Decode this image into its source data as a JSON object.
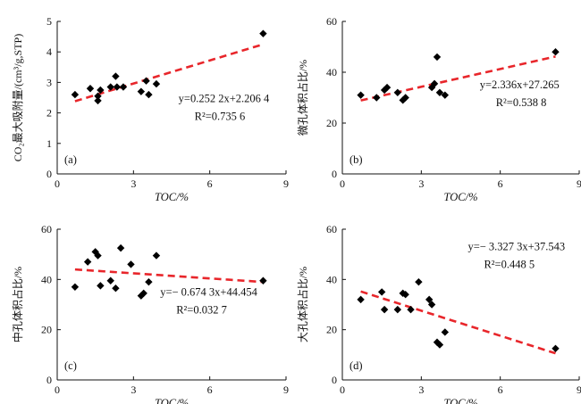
{
  "chart_data": [
    {
      "type": "scatter",
      "panel_label": "(a)",
      "xlabel": "TOC/%",
      "ylabel": "CO₂最大吸附量/(cm³/g,STP)",
      "xlim": [
        0,
        9
      ],
      "ylim": [
        0,
        5
      ],
      "x_ticks": [
        "0",
        "3",
        "6",
        "9"
      ],
      "y_ticks": [
        "0",
        "1",
        "2",
        "3",
        "4",
        "5"
      ],
      "equation": "y=0.252 2x+2.206 4",
      "r2": "R²=0.735 6",
      "trendline": {
        "slope": 0.2522,
        "intercept": 2.2064,
        "x_range": [
          0.7,
          8.1
        ]
      },
      "grid": false,
      "points": [
        {
          "x": 0.7,
          "y": 2.6
        },
        {
          "x": 1.3,
          "y": 2.8
        },
        {
          "x": 1.6,
          "y": 2.4
        },
        {
          "x": 1.6,
          "y": 2.55
        },
        {
          "x": 1.7,
          "y": 2.75
        },
        {
          "x": 2.1,
          "y": 2.85
        },
        {
          "x": 2.3,
          "y": 3.2
        },
        {
          "x": 2.35,
          "y": 2.85
        },
        {
          "x": 2.6,
          "y": 2.85
        },
        {
          "x": 3.3,
          "y": 2.7
        },
        {
          "x": 3.5,
          "y": 3.05
        },
        {
          "x": 3.6,
          "y": 2.6
        },
        {
          "x": 3.9,
          "y": 2.95
        },
        {
          "x": 8.1,
          "y": 4.6
        }
      ]
    },
    {
      "type": "scatter",
      "panel_label": "(b)",
      "xlabel": "TOC/%",
      "ylabel": "微孔体积占比/%",
      "xlim": [
        0,
        9
      ],
      "ylim": [
        0,
        60
      ],
      "x_ticks": [
        "0",
        "3",
        "6",
        "9"
      ],
      "y_ticks": [
        "0",
        "20",
        "40",
        "60"
      ],
      "equation": "y=2.336x+27.265",
      "r2": "R²=0.538 8",
      "trendline": {
        "slope": 2.336,
        "intercept": 27.265,
        "x_range": [
          0.7,
          8.1
        ]
      },
      "grid": false,
      "points": [
        {
          "x": 0.7,
          "y": 31
        },
        {
          "x": 1.3,
          "y": 30
        },
        {
          "x": 1.6,
          "y": 33
        },
        {
          "x": 1.7,
          "y": 34
        },
        {
          "x": 2.1,
          "y": 32
        },
        {
          "x": 2.3,
          "y": 29
        },
        {
          "x": 2.4,
          "y": 30
        },
        {
          "x": 3.4,
          "y": 34
        },
        {
          "x": 3.5,
          "y": 35.5
        },
        {
          "x": 3.6,
          "y": 46
        },
        {
          "x": 3.7,
          "y": 32
        },
        {
          "x": 3.9,
          "y": 31
        },
        {
          "x": 8.1,
          "y": 48
        }
      ]
    },
    {
      "type": "scatter",
      "panel_label": "(c)",
      "xlabel": "TOC/%",
      "ylabel": "中孔体积占比/%",
      "xlim": [
        0,
        9
      ],
      "ylim": [
        0,
        60
      ],
      "x_ticks": [
        "0",
        "3",
        "6",
        "9"
      ],
      "y_ticks": [
        "0",
        "20",
        "40",
        "60"
      ],
      "equation": "y=− 0.674 3x+44.454",
      "r2": "R²=0.032 7",
      "trendline": {
        "slope": -0.6743,
        "intercept": 44.454,
        "x_range": [
          0.7,
          8.1
        ]
      },
      "grid": false,
      "points": [
        {
          "x": 0.7,
          "y": 37
        },
        {
          "x": 1.2,
          "y": 47
        },
        {
          "x": 1.5,
          "y": 51
        },
        {
          "x": 1.6,
          "y": 49.5
        },
        {
          "x": 1.7,
          "y": 37.5
        },
        {
          "x": 2.1,
          "y": 39.5
        },
        {
          "x": 2.3,
          "y": 36.5
        },
        {
          "x": 2.5,
          "y": 52.5
        },
        {
          "x": 2.9,
          "y": 46
        },
        {
          "x": 3.3,
          "y": 33.5
        },
        {
          "x": 3.4,
          "y": 34.5
        },
        {
          "x": 3.6,
          "y": 39
        },
        {
          "x": 3.9,
          "y": 49.5
        },
        {
          "x": 8.1,
          "y": 39.5
        }
      ]
    },
    {
      "type": "scatter",
      "panel_label": "(d)",
      "xlabel": "TOC/%",
      "ylabel": "大孔体积占比/%",
      "xlim": [
        0,
        9
      ],
      "ylim": [
        0,
        60
      ],
      "x_ticks": [
        "0",
        "3",
        "6",
        "9"
      ],
      "y_ticks": [
        "0",
        "20",
        "40",
        "60"
      ],
      "equation": "y=− 3.327 3x+37.543",
      "r2": "R²=0.448 5",
      "trendline": {
        "slope": -3.3273,
        "intercept": 37.543,
        "x_range": [
          0.7,
          8.1
        ]
      },
      "grid": false,
      "points": [
        {
          "x": 0.7,
          "y": 32
        },
        {
          "x": 1.5,
          "y": 35
        },
        {
          "x": 1.6,
          "y": 28
        },
        {
          "x": 2.1,
          "y": 28
        },
        {
          "x": 2.3,
          "y": 34.5
        },
        {
          "x": 2.4,
          "y": 34
        },
        {
          "x": 2.6,
          "y": 28
        },
        {
          "x": 2.9,
          "y": 39
        },
        {
          "x": 3.3,
          "y": 32
        },
        {
          "x": 3.4,
          "y": 30
        },
        {
          "x": 3.6,
          "y": 15
        },
        {
          "x": 3.7,
          "y": 14
        },
        {
          "x": 3.9,
          "y": 19
        },
        {
          "x": 8.1,
          "y": 12.5
        }
      ]
    }
  ],
  "style": {
    "marker_color": "#000000",
    "trendline_color": "#e8262b",
    "axis_color": "#111111"
  }
}
